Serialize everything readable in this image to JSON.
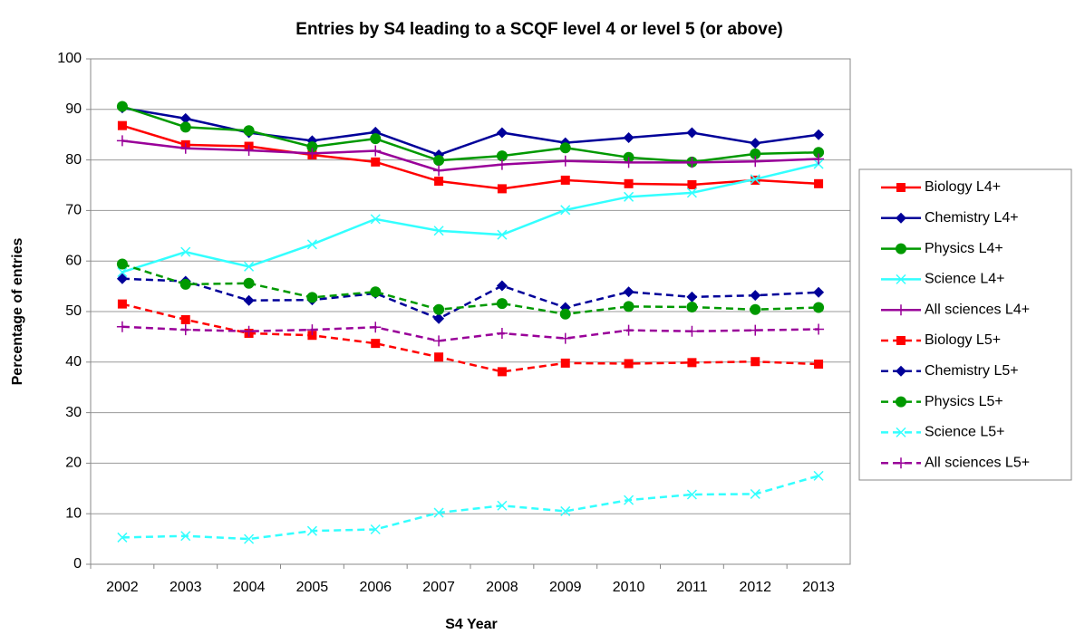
{
  "chart_data": {
    "type": "line",
    "title": "Entries by S4 leading to a SCQF level 4 or level 5 (or above)",
    "xlabel": "S4 Year",
    "ylabel": "Percentage of entries",
    "categories": [
      "2002",
      "2003",
      "2004",
      "2005",
      "2006",
      "2007",
      "2008",
      "2009",
      "2010",
      "2011",
      "2012",
      "2013"
    ],
    "ylim": [
      0,
      100
    ],
    "yticks": [
      0,
      10,
      20,
      30,
      40,
      50,
      60,
      70,
      80,
      90,
      100
    ],
    "grid": true,
    "legend": "right",
    "series": [
      {
        "name": "Biology L4+",
        "color": "#ff0000",
        "marker": "square",
        "dashed": false,
        "values": [
          86.8,
          83,
          82.7,
          81,
          79.6,
          75.8,
          74.3,
          76,
          75.3,
          75.1,
          76,
          75.3
        ]
      },
      {
        "name": "Chemistry L4+",
        "color": "#000099",
        "marker": "diamond",
        "dashed": false,
        "values": [
          90.3,
          88.2,
          85.4,
          83.8,
          85.5,
          81,
          85.4,
          83.4,
          84.4,
          85.4,
          83.3,
          85
        ]
      },
      {
        "name": "Physics L4+",
        "color": "#009900",
        "marker": "circle",
        "dashed": false,
        "values": [
          90.6,
          86.5,
          85.8,
          82.6,
          84.2,
          79.9,
          80.8,
          82.4,
          80.5,
          79.6,
          81.2,
          81.5
        ]
      },
      {
        "name": "Science L4+",
        "color": "#33ffff",
        "marker": "x",
        "dashed": false,
        "values": [
          57.8,
          61.8,
          58.9,
          63.3,
          68.3,
          66,
          65.2,
          70.1,
          72.7,
          73.5,
          76.2,
          79.2
        ]
      },
      {
        "name": "All sciences L4+",
        "color": "#990099",
        "marker": "plus",
        "dashed": false,
        "values": [
          83.8,
          82.3,
          81.9,
          81.3,
          81.8,
          77.9,
          79.1,
          79.8,
          79.5,
          79.5,
          79.7,
          80.2
        ]
      },
      {
        "name": "Biology L5+",
        "color": "#ff0000",
        "marker": "square",
        "dashed": true,
        "values": [
          51.5,
          48.4,
          45.7,
          45.3,
          43.7,
          41,
          38.1,
          39.8,
          39.7,
          39.9,
          40.1,
          39.6
        ]
      },
      {
        "name": "Chemistry L5+",
        "color": "#000099",
        "marker": "diamond",
        "dashed": true,
        "values": [
          56.5,
          56,
          52.2,
          52.3,
          53.6,
          48.6,
          55.1,
          50.8,
          53.9,
          52.9,
          53.2,
          53.8
        ]
      },
      {
        "name": "Physics L5+",
        "color": "#009900",
        "marker": "circle",
        "dashed": true,
        "values": [
          59.4,
          55.4,
          55.6,
          52.8,
          53.9,
          50.4,
          51.6,
          49.5,
          51,
          50.9,
          50.4,
          50.8
        ]
      },
      {
        "name": "Science L5+",
        "color": "#33ffff",
        "marker": "x",
        "dashed": true,
        "values": [
          5.3,
          5.6,
          5,
          6.6,
          6.9,
          10.2,
          11.6,
          10.5,
          12.7,
          13.8,
          13.9,
          17.5
        ]
      },
      {
        "name": "All sciences L5+",
        "color": "#990099",
        "marker": "plus",
        "dashed": true,
        "values": [
          47,
          46.4,
          46.1,
          46.4,
          46.9,
          44.2,
          45.7,
          44.7,
          46.3,
          46.1,
          46.3,
          46.5
        ]
      }
    ]
  }
}
